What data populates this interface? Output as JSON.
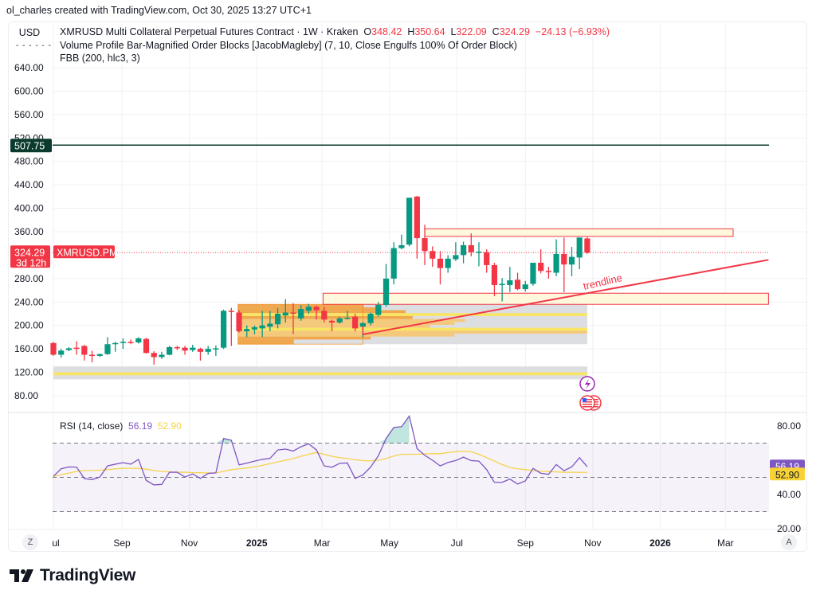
{
  "credit": "ol_charles created with TradingView.com, Oct 30, 2025 13:27 UTC+1",
  "currency_button": "USD",
  "legend": {
    "symbol": "XMRUSD Multi Collateral Perpetual Futures Contract · 1W · Kraken",
    "o_label": "O",
    "o": "348.42",
    "h_label": "H",
    "h": "350.64",
    "l_label": "L",
    "l": "322.09",
    "c_label": "C",
    "c": "324.29",
    "change": "−24.13 (−6.93%)",
    "indicator1": "Volume Profile Bar-Magnified Order Blocks [JacobMagleby] (7, 10, Close Engulfs 100% Of Order Block)",
    "indicator2": "FBB (200, hlc3, 3)"
  },
  "colors": {
    "up": "#089981",
    "down": "#f23645",
    "hline": "#0b3b2e",
    "rsi": "#7e57c2",
    "rsi_ma": "#f5d34a",
    "zone": "#f23645"
  },
  "price_axis": {
    "ticks": [
      "640.00",
      "600.00",
      "560.00",
      "520.00",
      "480.00",
      "440.00",
      "400.00",
      "360.00",
      "280.00",
      "240.00",
      "200.00",
      "160.00",
      "120.00",
      "80.00"
    ]
  },
  "last_price": {
    "value": "324.29",
    "countdown": "3d 12h",
    "symbol_tag": "XMRUSD.PM"
  },
  "hline": {
    "value": "507.75"
  },
  "time_axis": [
    {
      "label": "Jul",
      "date": "2024-07-01",
      "bold": false
    },
    {
      "label": "Sep",
      "date": "2024-09-01",
      "bold": false
    },
    {
      "label": "Nov",
      "date": "2024-11-01",
      "bold": false
    },
    {
      "label": "2025",
      "date": "2025-01-01",
      "bold": true
    },
    {
      "label": "Mar",
      "date": "2025-03-01",
      "bold": false
    },
    {
      "label": "May",
      "date": "2025-05-01",
      "bold": false
    },
    {
      "label": "Jul",
      "date": "2025-07-01",
      "bold": false
    },
    {
      "label": "Sep",
      "date": "2025-09-01",
      "bold": false
    },
    {
      "label": "Nov",
      "date": "2025-11-01",
      "bold": false
    },
    {
      "label": "2026",
      "date": "2026-01-01",
      "bold": true
    },
    {
      "label": "Mar",
      "date": "2026-03-01",
      "bold": false
    }
  ],
  "axis_buttons": {
    "left": "Z",
    "right": "A"
  },
  "drawings": {
    "trendline_label": "trendline",
    "trendline": {
      "from": [
        "2025-04-07",
        184.6
      ],
      "to": [
        "2026-04-09",
        312
      ]
    },
    "resistance_zone": {
      "from": "2025-06-02",
      "to": "2026-03-08",
      "low": 352,
      "high": 365
    },
    "support_zone": {
      "from": "2025-03-02",
      "to": "2026-04-09",
      "low": 236,
      "high": 255
    }
  },
  "events": [
    {
      "icon": "lightning-icon"
    },
    {
      "icon": "us-flag-icon"
    },
    {
      "icon": "us-flag-icon"
    }
  ],
  "volume_profile": {
    "upper": {
      "from": "2024-12-15",
      "to": "2025-10-27",
      "low": 168,
      "high": 236,
      "rows": [
        [
          231,
          236,
          0.36,
          "orange"
        ],
        [
          226,
          231,
          0.4,
          "orange"
        ],
        [
          221,
          226,
          0.48,
          "orange"
        ],
        [
          216,
          221,
          1.0,
          "yellow"
        ],
        [
          211,
          216,
          0.5,
          "orange"
        ],
        [
          206,
          211,
          0.65,
          "light"
        ],
        [
          201,
          206,
          0.62,
          "light"
        ],
        [
          196,
          201,
          0.55,
          "light"
        ],
        [
          191,
          196,
          1.0,
          "yellow"
        ],
        [
          186,
          191,
          1.0,
          "light"
        ],
        [
          181,
          186,
          0.62,
          "light"
        ],
        [
          176,
          181,
          0.38,
          "orange"
        ],
        [
          168,
          176,
          0.16,
          "orange"
        ]
      ]
    },
    "lower": {
      "from": "2024-07-01",
      "to": "2025-10-27",
      "low": 108,
      "high": 130,
      "rows": [
        [
          115,
          120,
          1.0,
          "yellow"
        ]
      ]
    }
  },
  "chart_data": {
    "type": "candlestick",
    "symbol": "XMRUSD",
    "interval": "1W",
    "price_range": [
      60,
      660
    ],
    "columns": [
      "date",
      "open",
      "high",
      "low",
      "close"
    ],
    "candles": [
      [
        "2024-07-01",
        170,
        172,
        148,
        150
      ],
      [
        "2024-07-08",
        150,
        160,
        145,
        157
      ],
      [
        "2024-07-15",
        158,
        163,
        156,
        161
      ],
      [
        "2024-07-22",
        162,
        173,
        150,
        160
      ],
      [
        "2024-07-29",
        165,
        167,
        140,
        150
      ],
      [
        "2024-08-05",
        150,
        157,
        137,
        149
      ],
      [
        "2024-08-12",
        148,
        152,
        146,
        151
      ],
      [
        "2024-08-19",
        151,
        180,
        150,
        168
      ],
      [
        "2024-08-26",
        168,
        172,
        155,
        170
      ],
      [
        "2024-09-02",
        170,
        178,
        160,
        172
      ],
      [
        "2024-09-09",
        172,
        176,
        168,
        170
      ],
      [
        "2024-09-16",
        171,
        180,
        169,
        178
      ],
      [
        "2024-09-23",
        177,
        179,
        152,
        153
      ],
      [
        "2024-09-30",
        153,
        156,
        133,
        146
      ],
      [
        "2024-10-07",
        146,
        155,
        143,
        150
      ],
      [
        "2024-10-14",
        150,
        165,
        149,
        163
      ],
      [
        "2024-10-21",
        163,
        165,
        158,
        161
      ],
      [
        "2024-10-28",
        162,
        165,
        150,
        157
      ],
      [
        "2024-11-04",
        158,
        167,
        155,
        162
      ],
      [
        "2024-11-11",
        160,
        162,
        140,
        155
      ],
      [
        "2024-11-18",
        155,
        165,
        150,
        160
      ],
      [
        "2024-11-25",
        159,
        166,
        148,
        161
      ],
      [
        "2024-12-02",
        162,
        227,
        160,
        225
      ],
      [
        "2024-12-09",
        225,
        230,
        165,
        223
      ],
      [
        "2024-12-16",
        222,
        226,
        188,
        190
      ],
      [
        "2024-12-23",
        190,
        200,
        180,
        194
      ],
      [
        "2024-12-30",
        193,
        200,
        185,
        197
      ],
      [
        "2025-01-06",
        195,
        225,
        180,
        200
      ],
      [
        "2025-01-13",
        198,
        225,
        190,
        203
      ],
      [
        "2025-01-20",
        202,
        230,
        195,
        220
      ],
      [
        "2025-01-27",
        217,
        245,
        205,
        222
      ],
      [
        "2025-02-03",
        222,
        238,
        185,
        220
      ],
      [
        "2025-02-10",
        212,
        235,
        208,
        228
      ],
      [
        "2025-02-17",
        225,
        237,
        220,
        232
      ],
      [
        "2025-02-24",
        232,
        234,
        210,
        226
      ],
      [
        "2025-03-03",
        225,
        232,
        205,
        210
      ],
      [
        "2025-03-10",
        208,
        210,
        190,
        205
      ],
      [
        "2025-03-17",
        205,
        215,
        203,
        212
      ],
      [
        "2025-03-24",
        213,
        225,
        210,
        213
      ],
      [
        "2025-03-31",
        215,
        220,
        190,
        195
      ],
      [
        "2025-04-07",
        198,
        206,
        180,
        204
      ],
      [
        "2025-04-14",
        204,
        222,
        200,
        220
      ],
      [
        "2025-04-21",
        218,
        240,
        215,
        235
      ],
      [
        "2025-04-28",
        235,
        305,
        232,
        280
      ],
      [
        "2025-05-05",
        280,
        342,
        270,
        332
      ],
      [
        "2025-05-12",
        332,
        355,
        330,
        337
      ],
      [
        "2025-05-19",
        338,
        418,
        335,
        418
      ],
      [
        "2025-05-26",
        420,
        421,
        314,
        349
      ],
      [
        "2025-06-02",
        349,
        372,
        303,
        327
      ],
      [
        "2025-06-09",
        327,
        335,
        300,
        314
      ],
      [
        "2025-06-16",
        314,
        327,
        270,
        298
      ],
      [
        "2025-06-23",
        298,
        320,
        290,
        314
      ],
      [
        "2025-06-30",
        313,
        342,
        310,
        320
      ],
      [
        "2025-07-07",
        320,
        343,
        306,
        337
      ],
      [
        "2025-07-14",
        337,
        357,
        318,
        325
      ],
      [
        "2025-07-21",
        325,
        342,
        301,
        326
      ],
      [
        "2025-07-28",
        325,
        330,
        290,
        303
      ],
      [
        "2025-08-04",
        303,
        307,
        250,
        269
      ],
      [
        "2025-08-11",
        270,
        281,
        241,
        271
      ],
      [
        "2025-08-18",
        269,
        300,
        257,
        277
      ],
      [
        "2025-08-25",
        278,
        290,
        260,
        262
      ],
      [
        "2025-09-01",
        262,
        276,
        258,
        270
      ],
      [
        "2025-09-08",
        271,
        307,
        268,
        307
      ],
      [
        "2025-09-15",
        307,
        330,
        289,
        293
      ],
      [
        "2025-09-22",
        293,
        300,
        280,
        292
      ],
      [
        "2025-09-29",
        290,
        347,
        284,
        322
      ],
      [
        "2025-10-06",
        322,
        350,
        257,
        304
      ],
      [
        "2025-10-13",
        304,
        334,
        284,
        317
      ],
      [
        "2025-10-20",
        316,
        350,
        296,
        350
      ],
      [
        "2025-10-27",
        348.42,
        350.64,
        322.09,
        324.29
      ]
    ],
    "rsi": {
      "label": "RSI (14, close)",
      "value": "56.19",
      "ma_value": "52.90",
      "ticks": [
        "80.00",
        "40.00",
        "20.00"
      ],
      "range": [
        15,
        90
      ],
      "bands": [
        70,
        50,
        30
      ],
      "values": [
        50.6,
        55,
        56.1,
        56,
        49.3,
        48.7,
        50.2,
        56.7,
        57.7,
        58.6,
        57.7,
        60.5,
        48.2,
        45.6,
        45.9,
        53,
        53,
        50.2,
        52,
        49.4,
        52.3,
        52.6,
        72.7,
        71.7,
        57.3,
        58.3,
        59.5,
        60.5,
        61.1,
        66,
        66.5,
        65.4,
        67.9,
        69.6,
        66,
        56.7,
        55.9,
        58.2,
        58.4,
        49.4,
        51.4,
        56,
        62.6,
        72.7,
        79.2,
        79.6,
        85.8,
        66.8,
        62.9,
        60,
        56.7,
        58.7,
        59.8,
        61.8,
        59.8,
        59.5,
        54.5,
        47.1,
        47.1,
        49,
        46.1,
        47.9,
        55.2,
        52.4,
        51.8,
        57.5,
        53.9,
        56.1,
        61.5,
        56.19
      ],
      "ma": [
        50.6,
        51.5,
        52.5,
        53.5,
        54,
        54,
        54.2,
        54.5,
        55,
        55.3,
        55.3,
        55.2,
        54.8,
        54,
        53.5,
        53.2,
        53,
        53,
        52.8,
        52.7,
        52.6,
        52.6,
        53.5,
        54.5,
        55,
        55.5,
        56.2,
        57,
        58,
        59,
        60,
        61,
        62.3,
        63.5,
        64.5,
        63.5,
        62.3,
        61.5,
        61,
        60.3,
        59.8,
        59.6,
        60,
        61,
        62.5,
        63.5,
        63.5,
        63.5,
        63.7,
        63.8,
        63.8,
        64.5,
        65,
        65.3,
        65,
        63.5,
        61.5,
        59.5,
        57.5,
        55.8,
        55,
        54.5,
        54,
        53.6,
        53.4,
        53.2,
        53,
        52.95,
        52.9,
        52.9
      ]
    }
  },
  "brand": "TradingView"
}
